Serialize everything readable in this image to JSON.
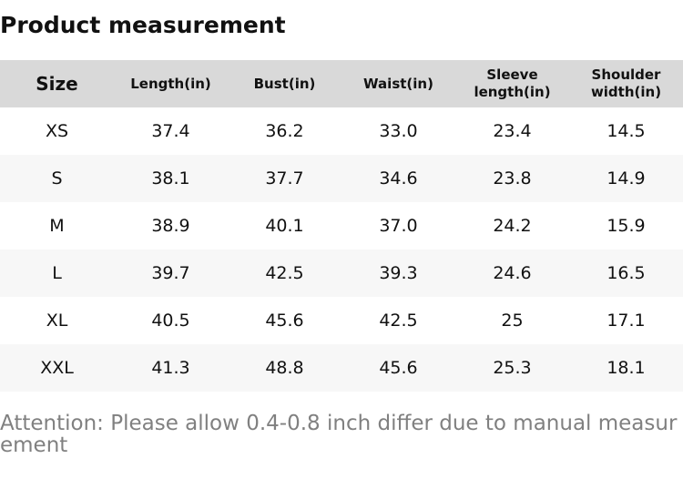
{
  "header": {
    "title": "Product measurement"
  },
  "table": {
    "columns": [
      "Size",
      "Length(in)",
      "Bust(in)",
      "Waist(in)",
      "Sleeve length(in)",
      "Shoulder width(in)"
    ],
    "rows": [
      [
        "XS",
        "37.4",
        "36.2",
        "33.0",
        "23.4",
        "14.5"
      ],
      [
        "S",
        "38.1",
        "37.7",
        "34.6",
        "23.8",
        "14.9"
      ],
      [
        "M",
        "38.9",
        "40.1",
        "37.0",
        "24.2",
        "15.9"
      ],
      [
        "L",
        "39.7",
        "42.5",
        "39.3",
        "24.6",
        "16.5"
      ],
      [
        "XL",
        "40.5",
        "45.6",
        "42.5",
        "25",
        "17.1"
      ],
      [
        "XXL",
        "41.3",
        "48.8",
        "45.6",
        "25.3",
        "18.1"
      ]
    ]
  },
  "note": "Attention: Please allow 0.4-0.8 inch differ due to manual measurement"
}
